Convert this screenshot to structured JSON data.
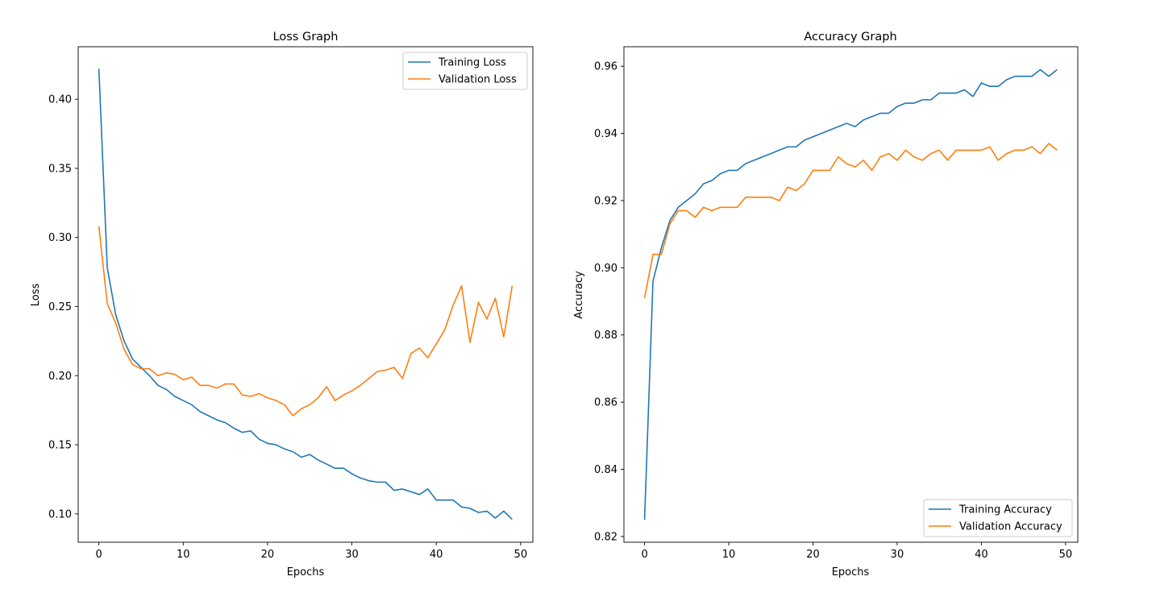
{
  "chart_data": [
    {
      "type": "line",
      "title": "Loss Graph",
      "xlabel": "Epochs",
      "ylabel": "Loss",
      "xlim": [
        -2.45,
        51.45
      ],
      "ylim": [
        0.0795,
        0.438
      ],
      "xticks": [
        0,
        10,
        20,
        30,
        40,
        50
      ],
      "yticks": [
        0.1,
        0.15,
        0.2,
        0.25,
        0.3,
        0.35,
        0.4
      ],
      "ytick_labels": [
        "0.10",
        "0.15",
        "0.20",
        "0.25",
        "0.30",
        "0.35",
        "0.40"
      ],
      "grid": false,
      "legend_position": "upper right",
      "x": [
        0,
        1,
        2,
        3,
        4,
        5,
        6,
        7,
        8,
        9,
        10,
        11,
        12,
        13,
        14,
        15,
        16,
        17,
        18,
        19,
        20,
        21,
        22,
        23,
        24,
        25,
        26,
        27,
        28,
        29,
        30,
        31,
        32,
        33,
        34,
        35,
        36,
        37,
        38,
        39,
        40,
        41,
        42,
        43,
        44,
        45,
        46,
        47,
        48,
        49
      ],
      "series": [
        {
          "name": "Training Loss",
          "color": "#1f77b4",
          "values": [
            0.422,
            0.278,
            0.244,
            0.225,
            0.212,
            0.206,
            0.2,
            0.193,
            0.19,
            0.185,
            0.182,
            0.179,
            0.174,
            0.171,
            0.168,
            0.166,
            0.162,
            0.159,
            0.16,
            0.154,
            0.151,
            0.15,
            0.147,
            0.145,
            0.141,
            0.143,
            0.139,
            0.136,
            0.133,
            0.133,
            0.129,
            0.126,
            0.124,
            0.123,
            0.123,
            0.117,
            0.118,
            0.116,
            0.114,
            0.118,
            0.11,
            0.11,
            0.11,
            0.105,
            0.104,
            0.101,
            0.102,
            0.097,
            0.102,
            0.096
          ]
        },
        {
          "name": "Validation Loss",
          "color": "#ff7f0e",
          "values": [
            0.308,
            0.252,
            0.238,
            0.219,
            0.208,
            0.205,
            0.205,
            0.2,
            0.202,
            0.201,
            0.197,
            0.199,
            0.193,
            0.193,
            0.191,
            0.194,
            0.194,
            0.186,
            0.185,
            0.187,
            0.184,
            0.182,
            0.179,
            0.171,
            0.176,
            0.179,
            0.184,
            0.192,
            0.182,
            0.186,
            0.189,
            0.193,
            0.198,
            0.203,
            0.204,
            0.206,
            0.198,
            0.216,
            0.22,
            0.213,
            0.223,
            0.233,
            0.251,
            0.265,
            0.224,
            0.253,
            0.241,
            0.256,
            0.228,
            0.265
          ]
        }
      ]
    },
    {
      "type": "line",
      "title": "Accuracy Graph",
      "xlabel": "Epochs",
      "ylabel": "Accuracy",
      "xlim": [
        -2.45,
        51.45
      ],
      "ylim": [
        0.8183,
        0.9658
      ],
      "xticks": [
        0,
        10,
        20,
        30,
        40,
        50
      ],
      "yticks": [
        0.82,
        0.84,
        0.86,
        0.88,
        0.9,
        0.92,
        0.94,
        0.96
      ],
      "ytick_labels": [
        "0.82",
        "0.84",
        "0.86",
        "0.88",
        "0.90",
        "0.92",
        "0.94",
        "0.96"
      ],
      "grid": false,
      "legend_position": "lower right",
      "x": [
        0,
        1,
        2,
        3,
        4,
        5,
        6,
        7,
        8,
        9,
        10,
        11,
        12,
        13,
        14,
        15,
        16,
        17,
        18,
        19,
        20,
        21,
        22,
        23,
        24,
        25,
        26,
        27,
        28,
        29,
        30,
        31,
        32,
        33,
        34,
        35,
        36,
        37,
        38,
        39,
        40,
        41,
        42,
        43,
        44,
        45,
        46,
        47,
        48,
        49
      ],
      "series": [
        {
          "name": "Training Accuracy",
          "color": "#1f77b4",
          "values": [
            0.825,
            0.896,
            0.906,
            0.914,
            0.918,
            0.92,
            0.922,
            0.925,
            0.926,
            0.928,
            0.929,
            0.929,
            0.931,
            0.932,
            0.933,
            0.934,
            0.935,
            0.936,
            0.936,
            0.938,
            0.939,
            0.94,
            0.941,
            0.942,
            0.943,
            0.942,
            0.944,
            0.945,
            0.946,
            0.946,
            0.948,
            0.949,
            0.949,
            0.95,
            0.95,
            0.952,
            0.952,
            0.952,
            0.953,
            0.951,
            0.955,
            0.954,
            0.954,
            0.956,
            0.957,
            0.957,
            0.957,
            0.959,
            0.957,
            0.959
          ]
        },
        {
          "name": "Validation Accuracy",
          "color": "#ff7f0e",
          "values": [
            0.891,
            0.904,
            0.904,
            0.913,
            0.917,
            0.917,
            0.915,
            0.918,
            0.917,
            0.918,
            0.918,
            0.918,
            0.921,
            0.921,
            0.921,
            0.921,
            0.92,
            0.924,
            0.923,
            0.925,
            0.929,
            0.929,
            0.929,
            0.933,
            0.931,
            0.93,
            0.932,
            0.929,
            0.933,
            0.934,
            0.932,
            0.935,
            0.933,
            0.932,
            0.934,
            0.935,
            0.932,
            0.935,
            0.935,
            0.935,
            0.935,
            0.936,
            0.932,
            0.934,
            0.935,
            0.935,
            0.936,
            0.934,
            0.937,
            0.935
          ]
        }
      ]
    }
  ]
}
